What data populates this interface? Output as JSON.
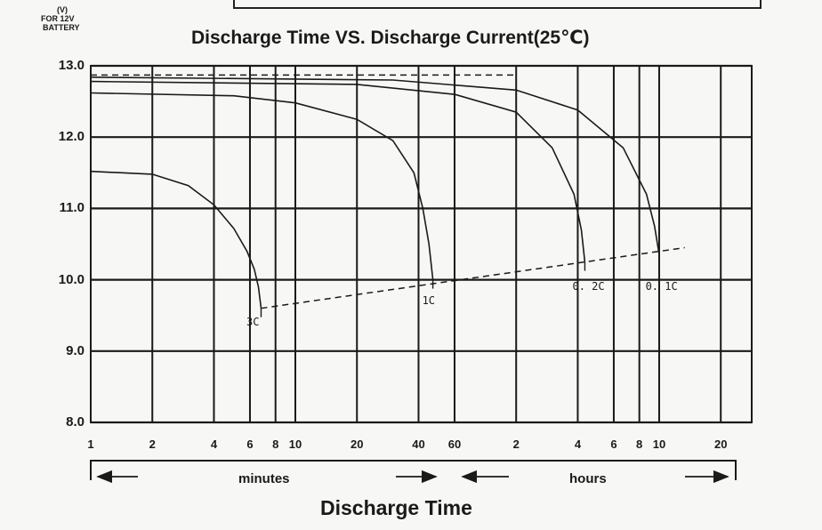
{
  "chart_data": {
    "type": "line",
    "title": "Discharge Time VS. Discharge Current(25℃)",
    "y_unit": [
      "(V)",
      "FOR 12V",
      "BATTERY"
    ],
    "xlabel": "Discharge Time",
    "ylabel": "",
    "x_scale": "log",
    "ylim": [
      8.0,
      13.0
    ],
    "y_ticks": [
      "13.0",
      "12.0",
      "11.0",
      "10.0",
      "9.0",
      "8.0"
    ],
    "x_ticks": [
      {
        "label": "1",
        "minutes": 1
      },
      {
        "label": "2",
        "minutes": 2
      },
      {
        "label": "4",
        "minutes": 4
      },
      {
        "label": "6",
        "minutes": 6
      },
      {
        "label": "8",
        "minutes": 8
      },
      {
        "label": "10",
        "minutes": 10
      },
      {
        "label": "20",
        "minutes": 20
      },
      {
        "label": "40",
        "minutes": 40
      },
      {
        "label": "60",
        "minutes": 60
      },
      {
        "label": "2",
        "minutes": 120
      },
      {
        "label": "4",
        "minutes": 240
      },
      {
        "label": "6",
        "minutes": 360
      },
      {
        "label": "8",
        "minutes": 480
      },
      {
        "label": "10",
        "minutes": 600
      },
      {
        "label": "20",
        "minutes": 1200
      }
    ],
    "ranges": [
      {
        "label": "minutes",
        "from_minutes": 1,
        "to_minutes": 60
      },
      {
        "label": "hours",
        "from_minutes": 60,
        "to_minutes": 1200
      }
    ],
    "grid": true,
    "series": [
      {
        "name": "3C",
        "x_minutes": [
          1,
          2,
          3,
          4,
          5,
          5.8,
          6.3,
          6.6,
          6.8
        ],
        "y": [
          11.52,
          11.48,
          11.32,
          11.05,
          10.72,
          10.4,
          10.15,
          9.9,
          9.6
        ]
      },
      {
        "name": "1C",
        "x_minutes": [
          1,
          5,
          10,
          20,
          30,
          38,
          42,
          45,
          47
        ],
        "y": [
          12.62,
          12.58,
          12.48,
          12.25,
          11.95,
          11.5,
          11.0,
          10.5,
          10.0
        ]
      },
      {
        "name": "0.2C",
        "x_minutes": [
          1,
          20,
          60,
          120,
          180,
          230,
          250,
          260
        ],
        "y": [
          12.78,
          12.74,
          12.6,
          12.35,
          11.85,
          11.2,
          10.7,
          10.25
        ]
      },
      {
        "name": "0.1C",
        "x_minutes": [
          1,
          30,
          120,
          240,
          400,
          520,
          570,
          600
        ],
        "y": [
          12.84,
          12.8,
          12.66,
          12.38,
          11.85,
          11.2,
          10.75,
          10.35
        ]
      }
    ],
    "reference_lines": [
      {
        "style": "dashed",
        "x_minutes": [
          1,
          120
        ],
        "y": [
          12.87,
          12.87
        ]
      },
      {
        "style": "dashed",
        "x_minutes": [
          6.8,
          800
        ],
        "y": [
          9.6,
          10.45
        ]
      }
    ],
    "annotations": [
      {
        "text": "3C",
        "x_minutes": 6.5,
        "y": 9.6
      },
      {
        "text": "1C",
        "x_minutes": 47,
        "y": 9.9
      },
      {
        "text": "0. 2C",
        "x_minutes": 255,
        "y": 10.1
      },
      {
        "text": "0. 1C",
        "x_minutes": 580,
        "y": 10.1
      }
    ],
    "colors": {
      "line": "#1a1a1a",
      "grid": "#1a1a1a",
      "background": "#f7f7f5"
    }
  }
}
